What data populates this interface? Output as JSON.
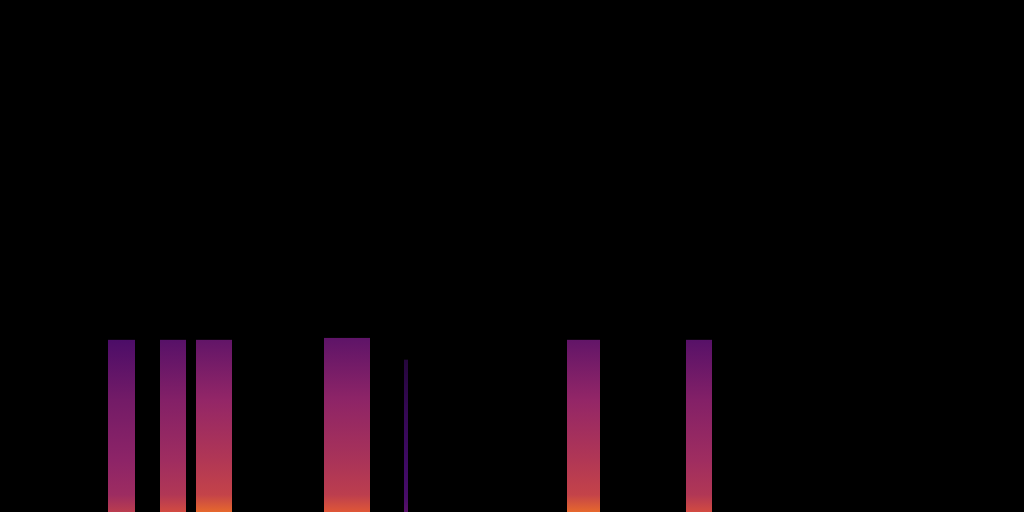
{
  "chart_data": {
    "type": "spectrogram",
    "xlim": [
      0,
      10.24
    ],
    "ylim": [
      0,
      8000
    ],
    "tick_labels": false,
    "clim": [
      -60,
      0
    ],
    "segments": [
      {
        "start": 1.08,
        "end": 1.35,
        "max_freq": 2690,
        "level": -20
      },
      {
        "start": 1.6,
        "end": 1.86,
        "max_freq": 2690,
        "level": -15
      },
      {
        "start": 1.96,
        "end": 2.32,
        "max_freq": 2690,
        "level": -10
      },
      {
        "start": 3.24,
        "end": 3.7,
        "max_freq": 2720,
        "level": -12
      },
      {
        "start": 4.04,
        "end": 4.08,
        "max_freq": 2380,
        "level": -40
      },
      {
        "start": 5.67,
        "end": 6.0,
        "max_freq": 2690,
        "level": -10
      },
      {
        "start": 6.86,
        "end": 7.12,
        "max_freq": 2690,
        "level": -15
      }
    ]
  }
}
